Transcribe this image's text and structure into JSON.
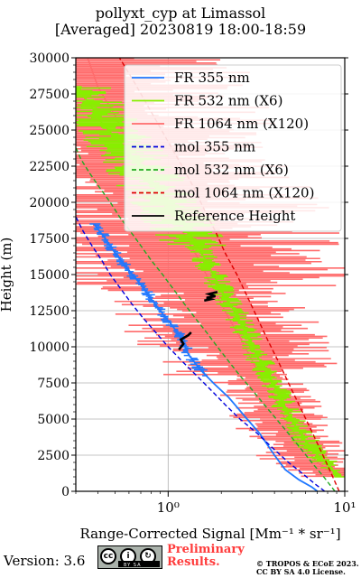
{
  "title": {
    "line1": "pollyxt_cyp at Limassol",
    "line2": "[Averaged] 20230819 18:00-18:59"
  },
  "footer": {
    "version": "Version: 3.6",
    "preliminary_line1": "Preliminary",
    "preliminary_line2": "Results.",
    "copyright_line1": "© TROPOS & ECoE 2023.",
    "copyright_line2": "CC BY SA 4.0 License.",
    "cc_badge_label": "BY SA"
  },
  "colors": {
    "fr355": "#1f77ff",
    "fr532": "#88ee00",
    "fr1064": "#ff6b6b",
    "mol355": "#0000dd",
    "mol532": "#22aa22",
    "mol1064": "#dd0000",
    "reference": "#000000",
    "prelim": "#ff3b3b"
  },
  "chart_data": {
    "type": "line",
    "xlabel": "Range-Corrected Signal [Mm⁻¹ * sr⁻¹]",
    "ylabel": "Height (m)",
    "xscale": "log",
    "xlim": [
      0.3,
      10
    ],
    "ylim": [
      0,
      30000
    ],
    "xticks": [
      1,
      10
    ],
    "xtick_labels": [
      "10⁰",
      "10¹"
    ],
    "yticks": [
      0,
      2500,
      5000,
      7500,
      10000,
      12500,
      15000,
      17500,
      20000,
      22500,
      25000,
      27500,
      30000
    ],
    "ytick_labels": [
      "0",
      "2500",
      "5000",
      "7500",
      "10000",
      "12500",
      "15000",
      "17500",
      "20000",
      "22500",
      "25000",
      "27500",
      "30000"
    ],
    "grid": true,
    "legend_position": "top-right",
    "series": [
      {
        "name": "FR 355 nm",
        "key": "fr355",
        "style": "solid",
        "points": [
          [
            7.0,
            0
          ],
          [
            6.5,
            300
          ],
          [
            5.5,
            800
          ],
          [
            4.6,
            1500
          ],
          [
            4.0,
            2500
          ],
          [
            3.3,
            4000
          ],
          [
            2.8,
            5000
          ],
          [
            2.2,
            6500
          ],
          [
            1.8,
            7500
          ],
          [
            1.5,
            8500
          ],
          [
            1.3,
            9500
          ],
          [
            1.2,
            10500
          ],
          [
            1.05,
            11500
          ],
          [
            0.9,
            12500
          ],
          [
            0.78,
            13500
          ],
          [
            0.68,
            14500
          ],
          [
            0.58,
            15500
          ],
          [
            0.5,
            16500
          ],
          [
            0.44,
            17500
          ],
          [
            0.38,
            18500
          ]
        ]
      },
      {
        "name": "FR 532 nm (X6)",
        "key": "fr532",
        "style": "solid",
        "points": [
          [
            9.5,
            1000
          ],
          [
            8.5,
            1500
          ],
          [
            7.0,
            2500
          ],
          [
            6.0,
            3500
          ],
          [
            5.0,
            5000
          ],
          [
            4.3,
            6500
          ],
          [
            3.9,
            7500
          ],
          [
            3.5,
            8500
          ],
          [
            3.0,
            10000
          ],
          [
            2.5,
            12000
          ],
          [
            2.1,
            13500
          ],
          [
            1.8,
            15000
          ],
          [
            1.55,
            16500
          ],
          [
            1.3,
            18000
          ],
          [
            1.05,
            19500
          ],
          [
            0.85,
            21000
          ],
          [
            0.7,
            22500
          ],
          [
            0.55,
            24000
          ],
          [
            0.42,
            25500
          ],
          [
            0.35,
            27000
          ],
          [
            0.3,
            28000
          ]
        ]
      },
      {
        "name": "FR 1064 nm (X120)",
        "key": "fr1064",
        "style": "solid",
        "points": [
          [
            9.0,
            1000
          ],
          [
            7.0,
            2000
          ],
          [
            5.5,
            3500
          ],
          [
            4.6,
            5000
          ],
          [
            4.0,
            6500
          ],
          [
            3.5,
            7500
          ],
          [
            3.0,
            9000
          ],
          [
            2.6,
            10500
          ],
          [
            2.2,
            12000
          ],
          [
            1.8,
            14000
          ],
          [
            1.5,
            16000
          ],
          [
            1.2,
            18000
          ],
          [
            1.0,
            20000
          ],
          [
            0.8,
            22000
          ],
          [
            0.6,
            24000
          ],
          [
            0.5,
            26000
          ],
          [
            0.4,
            28000
          ],
          [
            0.35,
            30000
          ]
        ]
      },
      {
        "name": "mol 355 nm",
        "key": "mol355",
        "style": "dashed",
        "points": [
          [
            7.7,
            0
          ],
          [
            6.8,
            500
          ],
          [
            5.8,
            1200
          ],
          [
            4.8,
            2000
          ],
          [
            3.9,
            3000
          ],
          [
            3.2,
            4000
          ],
          [
            2.55,
            5000
          ],
          [
            2.1,
            6000
          ],
          [
            1.75,
            7000
          ],
          [
            1.45,
            8000
          ],
          [
            1.2,
            9000
          ],
          [
            1.0,
            10000
          ],
          [
            0.85,
            11000
          ],
          [
            0.72,
            12000
          ],
          [
            0.62,
            13000
          ],
          [
            0.54,
            14000
          ],
          [
            0.47,
            15000
          ],
          [
            0.42,
            16000
          ],
          [
            0.37,
            17000
          ],
          [
            0.33,
            18000
          ],
          [
            0.3,
            19000
          ]
        ]
      },
      {
        "name": "mol 532 nm (X6)",
        "key": "mol532",
        "style": "dashed",
        "points": [
          [
            8.8,
            0
          ],
          [
            7.6,
            1000
          ],
          [
            6.5,
            2000
          ],
          [
            5.6,
            3000
          ],
          [
            4.8,
            4000
          ],
          [
            4.1,
            5000
          ],
          [
            3.5,
            6000
          ],
          [
            3.0,
            7000
          ],
          [
            2.55,
            8000
          ],
          [
            2.2,
            9000
          ],
          [
            1.9,
            10000
          ],
          [
            1.65,
            11000
          ],
          [
            1.42,
            12000
          ],
          [
            1.23,
            13000
          ],
          [
            1.07,
            14000
          ],
          [
            0.93,
            15000
          ],
          [
            0.8,
            16000
          ],
          [
            0.7,
            17000
          ],
          [
            0.61,
            18000
          ],
          [
            0.53,
            19000
          ],
          [
            0.47,
            20000
          ],
          [
            0.41,
            21000
          ],
          [
            0.36,
            22000
          ],
          [
            0.32,
            23000
          ],
          [
            0.3,
            23800
          ]
        ]
      },
      {
        "name": "mol 1064 nm (X120)",
        "key": "mol1064",
        "style": "dashed",
        "points": [
          [
            9.3,
            0
          ],
          [
            8.2,
            1500
          ],
          [
            7.2,
            3000
          ],
          [
            6.3,
            4500
          ],
          [
            5.5,
            6000
          ],
          [
            4.8,
            7500
          ],
          [
            4.2,
            9000
          ],
          [
            3.65,
            10500
          ],
          [
            3.2,
            12000
          ],
          [
            2.8,
            13500
          ],
          [
            2.45,
            15000
          ],
          [
            2.1,
            16500
          ],
          [
            1.85,
            18000
          ],
          [
            1.6,
            19500
          ],
          [
            1.4,
            21000
          ],
          [
            1.2,
            22500
          ],
          [
            1.02,
            24000
          ],
          [
            0.87,
            25500
          ],
          [
            0.74,
            27000
          ],
          [
            0.63,
            28500
          ],
          [
            0.53,
            30000
          ]
        ]
      },
      {
        "name": "Reference Height",
        "key": "reference",
        "style": "solid",
        "points": []
      }
    ],
    "reference_segments": [
      {
        "series": "fr355",
        "points": [
          [
            1.15,
            9800
          ],
          [
            1.22,
            10200
          ],
          [
            1.18,
            10500
          ],
          [
            1.3,
            10800
          ],
          [
            1.35,
            11000
          ]
        ]
      },
      {
        "series": "fr532",
        "points": [
          [
            1.6,
            13200
          ],
          [
            1.75,
            13300
          ],
          [
            1.65,
            13400
          ],
          [
            1.85,
            13500
          ],
          [
            1.7,
            13650
          ],
          [
            1.9,
            13800
          ]
        ]
      }
    ]
  }
}
